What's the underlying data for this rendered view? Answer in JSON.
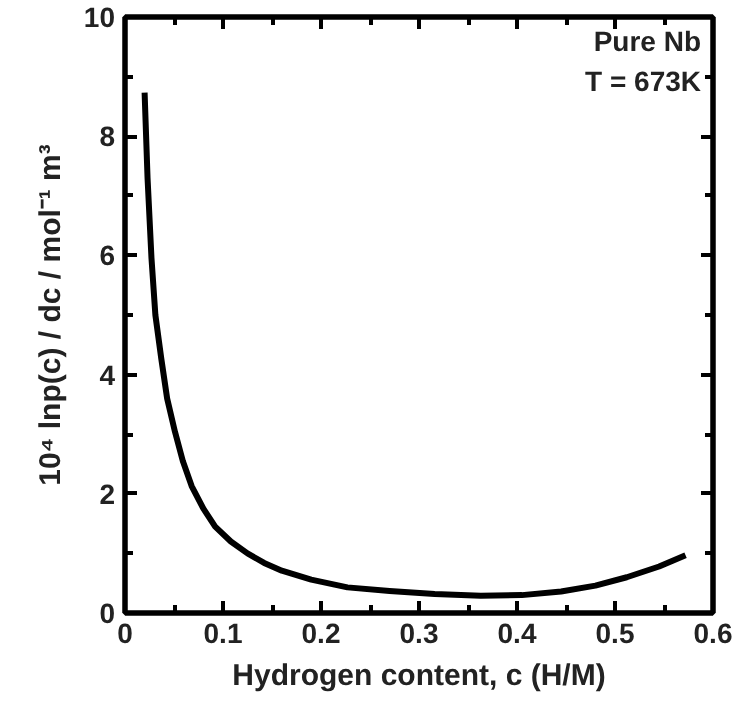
{
  "chart_data": {
    "type": "line",
    "xlabel": "Hydrogen content, c (H/M)",
    "ylabel": "10⁴ lnp(c) / dc / mol⁻¹ m³",
    "annotations": [
      "Pure Nb",
      "T = 673K"
    ],
    "series": [
      {
        "color": "#000000",
        "x": [
          0.02,
          0.023,
          0.027,
          0.031,
          0.037,
          0.043,
          0.051,
          0.059,
          0.068,
          0.08,
          0.092,
          0.108,
          0.125,
          0.142,
          0.16,
          0.19,
          0.227,
          0.27,
          0.316,
          0.363,
          0.405,
          0.445,
          0.48,
          0.512,
          0.545,
          0.572
        ],
        "values": [
          8.73,
          7.3,
          5.96,
          5.0,
          4.27,
          3.6,
          3.04,
          2.55,
          2.13,
          1.75,
          1.45,
          1.2,
          1.0,
          0.84,
          0.71,
          0.56,
          0.43,
          0.37,
          0.32,
          0.29,
          0.3,
          0.36,
          0.46,
          0.6,
          0.78,
          0.97
        ]
      }
    ],
    "xlim": [
      0,
      0.6
    ],
    "ylim": [
      0,
      10
    ],
    "xticks": [
      0,
      0.1,
      0.2,
      0.3,
      0.4,
      0.5,
      0.6
    ],
    "yticks": [
      0,
      2,
      4,
      6,
      8,
      10
    ],
    "line_style": "solid"
  }
}
